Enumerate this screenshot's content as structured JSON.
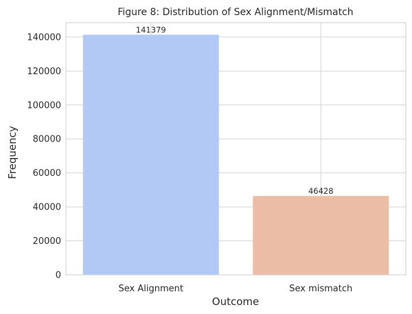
{
  "chart_data": {
    "type": "bar",
    "title": "Figure 8: Distribution of Sex Alignment/Mismatch",
    "xlabel": "Outcome",
    "ylabel": "Frequency",
    "categories": [
      "Sex Alignment",
      "Sex mismatch"
    ],
    "values": [
      141379,
      46428
    ],
    "data_labels": [
      "141379",
      "46428"
    ],
    "ylim": [
      0,
      148450
    ],
    "yticks": [
      0,
      20000,
      40000,
      60000,
      80000,
      100000,
      120000,
      140000
    ],
    "ytick_labels": [
      "0",
      "20000",
      "40000",
      "60000",
      "80000",
      "100000",
      "120000",
      "140000"
    ],
    "grid": true,
    "colors": [
      "#b3c9f5",
      "#ecbda6"
    ],
    "grid_color": "#d4d4d4",
    "axes_edge_color": "#cccccc"
  }
}
